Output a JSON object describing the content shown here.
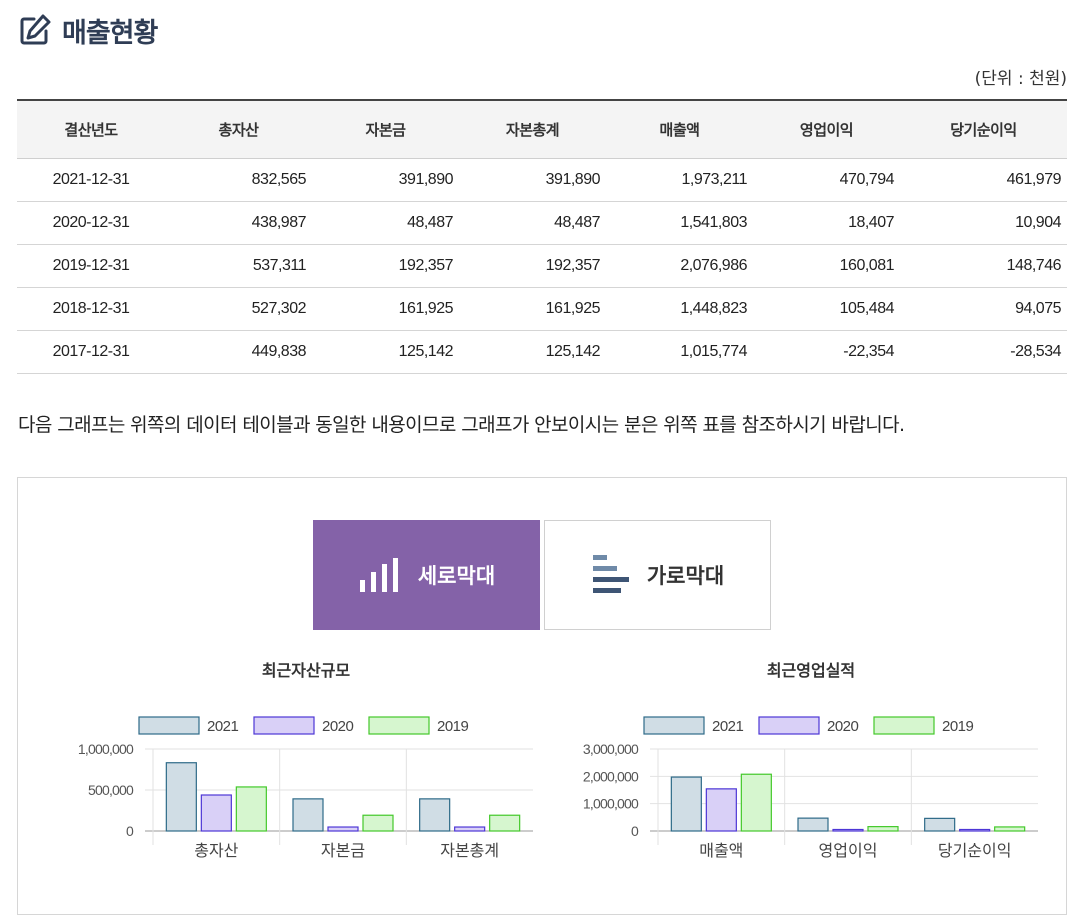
{
  "page": {
    "title": "매출현황",
    "unit_note": "(단위 : 천원)",
    "notice": "다음 그래프는 위쪽의 데이터 테이블과 동일한 내용이므로 그래프가 안보이시는 분은 위쪽 표를 참조하시기 바랍니다."
  },
  "table": {
    "headers": [
      "결산년도",
      "총자산",
      "자본금",
      "자본총계",
      "매출액",
      "영업이익",
      "당기순이익"
    ],
    "rows": [
      [
        "2021-12-31",
        "832,565",
        "391,890",
        "391,890",
        "1,973,211",
        "470,794",
        "461,979"
      ],
      [
        "2020-12-31",
        "438,987",
        "48,487",
        "48,487",
        "1,541,803",
        "18,407",
        "10,904"
      ],
      [
        "2019-12-31",
        "537,311",
        "192,357",
        "192,357",
        "2,076,986",
        "160,081",
        "148,746"
      ],
      [
        "2018-12-31",
        "527,302",
        "161,925",
        "161,925",
        "1,448,823",
        "105,484",
        "94,075"
      ],
      [
        "2017-12-31",
        "449,838",
        "125,142",
        "125,142",
        "1,015,774",
        "-22,354",
        "-28,534"
      ]
    ]
  },
  "tabs": {
    "vertical_label": "세로막대",
    "horizontal_label": "가로막대",
    "active": "vertical",
    "active_color": "#8462a8"
  },
  "chart_data": [
    {
      "type": "bar",
      "title": "최근자산규모",
      "categories": [
        "총자산",
        "자본금",
        "자본총계"
      ],
      "series": [
        {
          "name": "2021",
          "values": [
            832565,
            391890,
            391890
          ],
          "fill": "#d0dde5",
          "stroke": "#2e6a88"
        },
        {
          "name": "2020",
          "values": [
            438987,
            48487,
            48487
          ],
          "fill": "#d9d0f7",
          "stroke": "#4d36d6"
        },
        {
          "name": "2019",
          "values": [
            537311,
            192357,
            192357
          ],
          "fill": "#d6f6cf",
          "stroke": "#43c92a"
        }
      ],
      "ylim": [
        0,
        1000000
      ],
      "yticks": [
        "1,000,000",
        "500,000",
        "0"
      ],
      "legend": "top",
      "grid": true
    },
    {
      "type": "bar",
      "title": "최근영업실적",
      "categories": [
        "매출액",
        "영업이익",
        "당기순이익"
      ],
      "series": [
        {
          "name": "2021",
          "values": [
            1973211,
            470794,
            461979
          ],
          "fill": "#d0dde5",
          "stroke": "#2e6a88"
        },
        {
          "name": "2020",
          "values": [
            1541803,
            18407,
            10904
          ],
          "fill": "#d9d0f7",
          "stroke": "#4d36d6"
        },
        {
          "name": "2019",
          "values": [
            2076986,
            160081,
            148746
          ],
          "fill": "#d6f6cf",
          "stroke": "#43c92a"
        }
      ],
      "ylim": [
        0,
        3000000
      ],
      "yticks": [
        "3,000,000",
        "2,000,000",
        "1,000,000",
        "0"
      ],
      "legend": "top",
      "grid": true
    }
  ]
}
